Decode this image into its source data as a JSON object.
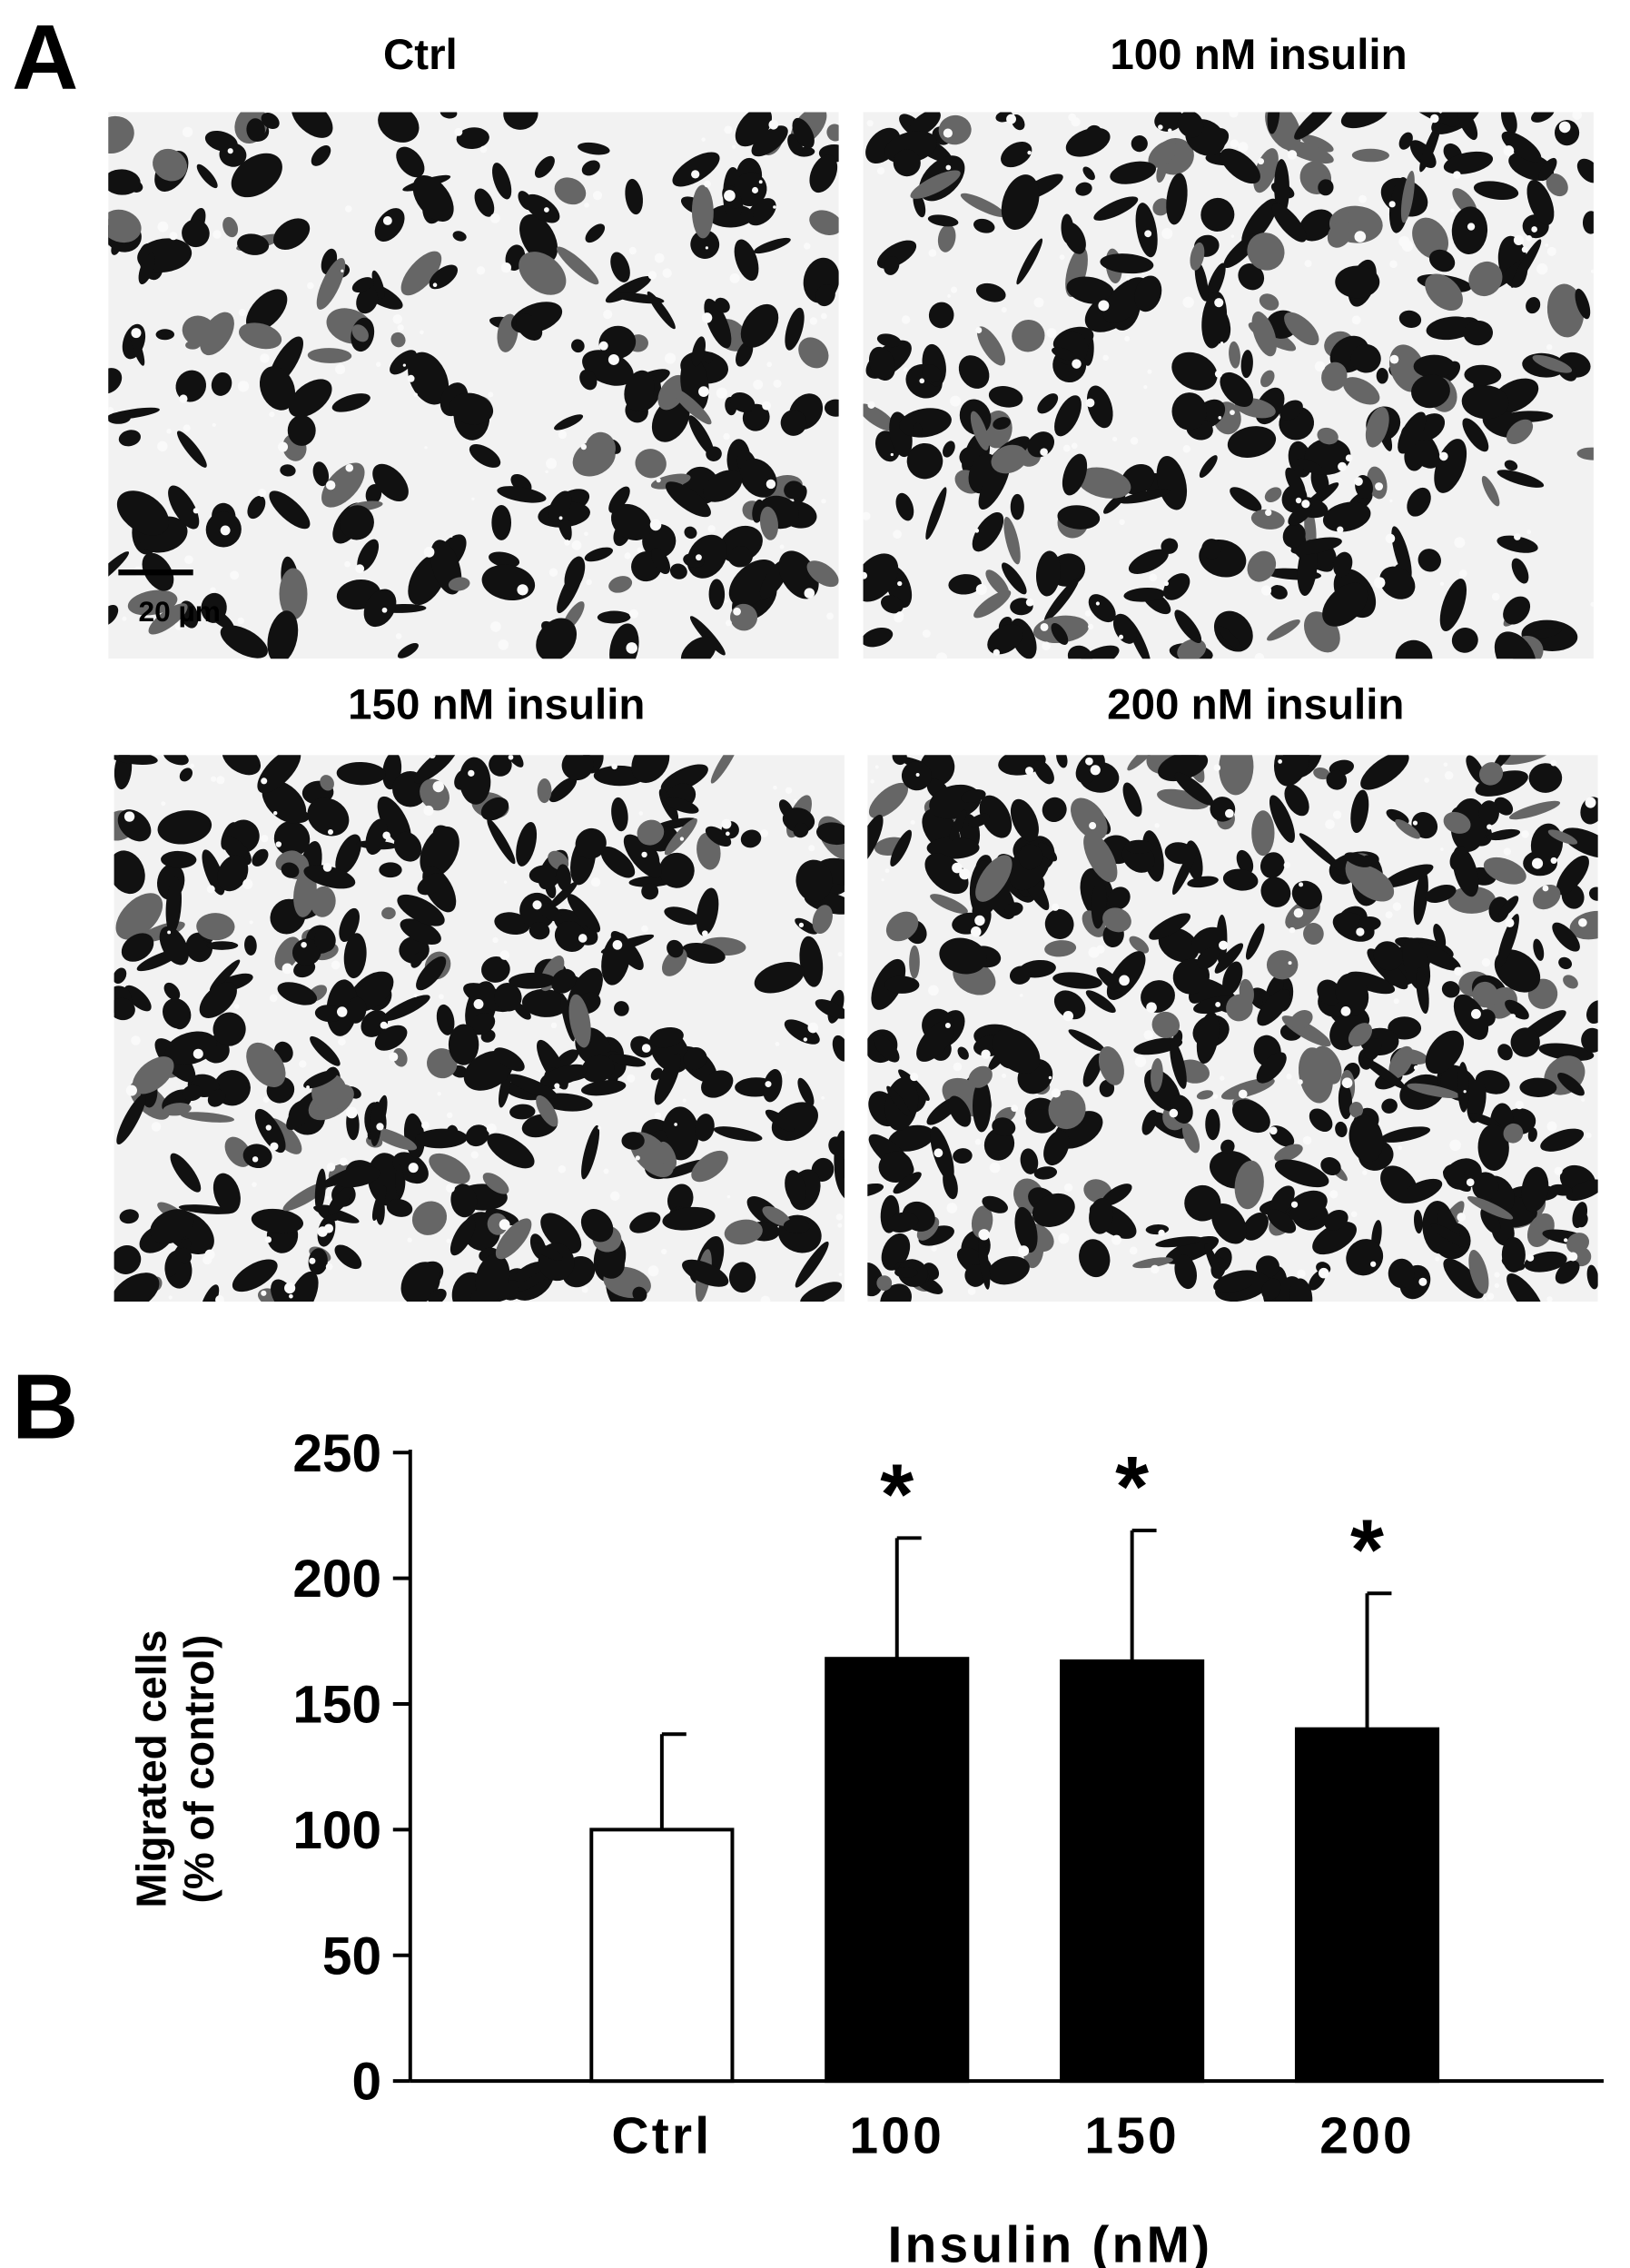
{
  "panel_a": {
    "label": "A",
    "panels": [
      "Ctrl",
      "100 nM insulin",
      "150 nM insulin",
      "200 nM insulin"
    ],
    "scale_bar": "20 µm"
  },
  "chart_data": {
    "type": "bar",
    "panel_label": "B",
    "categories": [
      "Ctrl",
      "100",
      "150",
      "200"
    ],
    "values": [
      100,
      168,
      167,
      140
    ],
    "errors": [
      38,
      48,
      52,
      54
    ],
    "colors": [
      "#ffffff",
      "#000000",
      "#000000",
      "#000000"
    ],
    "significance": [
      null,
      "*",
      "*",
      "*"
    ],
    "x_label": "Insulin (nM)",
    "y_label": [
      "Migrated cells",
      "(% of control)"
    ],
    "ylim": [
      0,
      250
    ],
    "yticks": [
      0,
      50,
      100,
      150,
      200,
      250
    ]
  }
}
